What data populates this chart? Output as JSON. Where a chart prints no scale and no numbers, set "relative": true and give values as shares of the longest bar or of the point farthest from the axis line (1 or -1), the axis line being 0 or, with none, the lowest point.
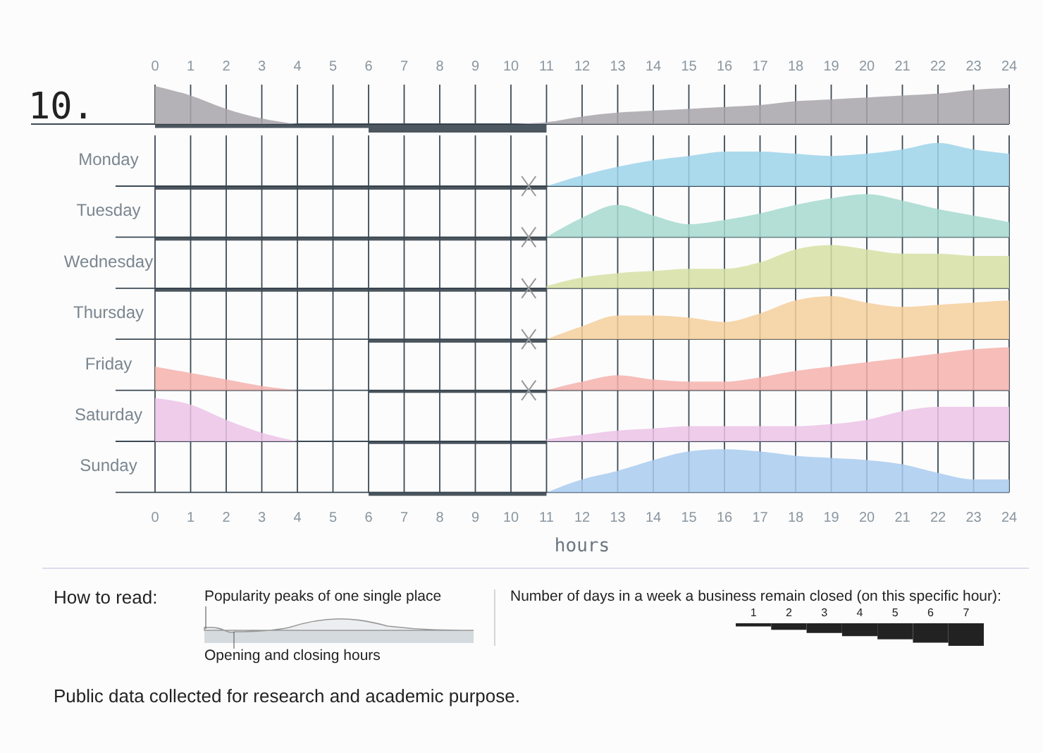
{
  "chart_data": [
    {
      "type": "area",
      "title": "10.",
      "relative": true,
      "xlim": [
        0,
        24
      ],
      "xticks": [
        0,
        1,
        2,
        3,
        4,
        5,
        6,
        7,
        8,
        9,
        10,
        11,
        12,
        13,
        14,
        15,
        16,
        17,
        18,
        19,
        20,
        21,
        22,
        23,
        24
      ],
      "tick_labels": "x",
      "grid": "x",
      "series": [
        {
          "color": "#a8a4aa",
          "x": [
            0,
            1,
            2,
            3,
            4,
            5,
            6,
            7,
            8,
            9,
            10,
            11,
            12,
            13,
            14,
            15,
            16,
            17,
            18,
            19,
            20,
            21,
            22,
            23,
            24
          ],
          "values": [
            1,
            0.75,
            0.4,
            0.15,
            0,
            null,
            null,
            null,
            null,
            null,
            0,
            0.05,
            0.2,
            0.3,
            0.35,
            0.4,
            0.45,
            0.5,
            0.6,
            0.65,
            0.7,
            0.75,
            0.8,
            0.9,
            0.95
          ]
        },
        {
          "type": "area",
          "color": "#2e3a44",
          "x": [
            0,
            6,
            6,
            11
          ],
          "values": [
            -0.1,
            -0.1,
            -0.22,
            -0.22
          ]
        }
      ]
    },
    {
      "type": "area",
      "title": "Monday",
      "relative": true,
      "xlim": [
        0,
        24
      ],
      "xticks": [
        0,
        1,
        2,
        3,
        4,
        5,
        6,
        7,
        8,
        9,
        10,
        11,
        12,
        13,
        14,
        15,
        16,
        17,
        18,
        19,
        20,
        21,
        22,
        23,
        24
      ],
      "tick_labels": false,
      "grid": "x",
      "series": [
        {
          "color": "#9ed3ea",
          "x": [
            11,
            12,
            13,
            14,
            15,
            16,
            17,
            18,
            19,
            20,
            21,
            22,
            23,
            24
          ],
          "values": [
            0,
            0.25,
            0.45,
            0.6,
            0.7,
            0.8,
            0.8,
            0.75,
            0.7,
            0.75,
            0.85,
            1,
            0.85,
            0.75
          ]
        },
        {
          "type": "area",
          "color": "#2e3a44",
          "x": [
            0,
            11
          ],
          "values": [
            -0.08,
            -0.08
          ]
        }
      ]
    },
    {
      "type": "area",
      "title": "Tuesday",
      "relative": true,
      "xlim": [
        0,
        24
      ],
      "xticks": [
        0,
        1,
        2,
        3,
        4,
        5,
        6,
        7,
        8,
        9,
        10,
        11,
        12,
        13,
        14,
        15,
        16,
        17,
        18,
        19,
        20,
        21,
        22,
        23,
        24
      ],
      "tick_labels": false,
      "grid": "x",
      "series": [
        {
          "color": "#a6d9cf",
          "x": [
            11,
            12,
            13,
            14,
            15,
            16,
            17,
            18,
            19,
            20,
            21,
            22,
            23,
            24
          ],
          "values": [
            0,
            0.45,
            0.75,
            0.5,
            0.3,
            0.4,
            0.55,
            0.75,
            0.9,
            1,
            0.85,
            0.65,
            0.5,
            0.35
          ]
        },
        {
          "type": "area",
          "color": "#2e3a44",
          "x": [
            0,
            11
          ],
          "values": [
            -0.08,
            -0.08
          ]
        }
      ]
    },
    {
      "type": "area",
      "title": "Wednesday",
      "relative": true,
      "xlim": [
        0,
        24
      ],
      "xticks": [
        0,
        1,
        2,
        3,
        4,
        5,
        6,
        7,
        8,
        9,
        10,
        11,
        12,
        13,
        14,
        15,
        16,
        17,
        18,
        19,
        20,
        21,
        22,
        23,
        24
      ],
      "tick_labels": false,
      "grid": "x",
      "series": [
        {
          "color": "#d6e0a5",
          "x": [
            11,
            12,
            13,
            14,
            15,
            16,
            17,
            18,
            19,
            20,
            21,
            22,
            23,
            24
          ],
          "values": [
            0.05,
            0.25,
            0.35,
            0.4,
            0.45,
            0.45,
            0.6,
            0.9,
            1,
            0.9,
            0.8,
            0.8,
            0.75,
            0.75
          ]
        },
        {
          "type": "area",
          "color": "#2e3a44",
          "x": [
            0,
            11
          ],
          "values": [
            -0.08,
            -0.08
          ]
        }
      ]
    },
    {
      "type": "area",
      "title": "Thursday",
      "relative": true,
      "xlim": [
        0,
        24
      ],
      "xticks": [
        0,
        1,
        2,
        3,
        4,
        5,
        6,
        7,
        8,
        9,
        10,
        11,
        12,
        13,
        14,
        15,
        16,
        17,
        18,
        19,
        20,
        21,
        22,
        23,
        24
      ],
      "tick_labels": false,
      "grid": "x",
      "series": [
        {
          "color": "#f5cf9c",
          "x": [
            11,
            12,
            13,
            14,
            15,
            16,
            17,
            18,
            19,
            20,
            21,
            22,
            23,
            24
          ],
          "values": [
            0,
            0.3,
            0.55,
            0.55,
            0.5,
            0.4,
            0.6,
            0.9,
            1,
            0.85,
            0.75,
            0.8,
            0.85,
            0.9
          ]
        },
        {
          "type": "area",
          "color": "#2e3a44",
          "x": [
            6,
            11
          ],
          "values": [
            -0.08,
            -0.08
          ]
        }
      ]
    },
    {
      "type": "area",
      "title": "Friday",
      "relative": true,
      "xlim": [
        0,
        24
      ],
      "xticks": [
        0,
        1,
        2,
        3,
        4,
        5,
        6,
        7,
        8,
        9,
        10,
        11,
        12,
        13,
        14,
        15,
        16,
        17,
        18,
        19,
        20,
        21,
        22,
        23,
        24
      ],
      "tick_labels": false,
      "grid": "x",
      "series": [
        {
          "color": "#f5b2ad",
          "x": [
            0,
            1,
            2,
            3,
            4,
            5,
            6,
            7,
            8,
            9,
            10,
            11,
            12,
            13,
            14,
            15,
            16,
            17,
            18,
            19,
            20,
            21,
            22,
            23,
            24
          ],
          "values": [
            0.55,
            0.4,
            0.25,
            0.1,
            0,
            null,
            null,
            null,
            null,
            null,
            null,
            0,
            0.2,
            0.35,
            0.25,
            0.2,
            0.2,
            0.3,
            0.45,
            0.55,
            0.65,
            0.75,
            0.85,
            0.95,
            1
          ]
        },
        {
          "type": "area",
          "color": "#2e3a44",
          "x": [
            6,
            11
          ],
          "values": [
            -0.06,
            -0.06
          ]
        }
      ]
    },
    {
      "type": "area",
      "title": "Saturday",
      "relative": true,
      "xlim": [
        0,
        24
      ],
      "xticks": [
        0,
        1,
        2,
        3,
        4,
        5,
        6,
        7,
        8,
        9,
        10,
        11,
        12,
        13,
        14,
        15,
        16,
        17,
        18,
        19,
        20,
        21,
        22,
        23,
        24
      ],
      "tick_labels": false,
      "grid": "x",
      "series": [
        {
          "color": "#ebc3e6",
          "x": [
            0,
            1,
            2,
            3,
            4,
            5,
            6,
            7,
            8,
            9,
            10,
            11,
            12,
            13,
            14,
            15,
            16,
            17,
            18,
            19,
            20,
            21,
            22,
            23,
            24
          ],
          "values": [
            1,
            0.85,
            0.5,
            0.2,
            0,
            null,
            null,
            null,
            null,
            null,
            null,
            0.05,
            0.15,
            0.25,
            0.3,
            0.35,
            0.35,
            0.35,
            0.35,
            0.4,
            0.5,
            0.7,
            0.8,
            0.8,
            0.8
          ]
        },
        {
          "type": "area",
          "color": "#2e3a44",
          "x": [
            6,
            11
          ],
          "values": [
            -0.06,
            -0.06
          ]
        }
      ]
    },
    {
      "type": "area",
      "title": "Sunday",
      "xlabel": "hours",
      "relative": true,
      "xlim": [
        0,
        24
      ],
      "xticks": [
        0,
        1,
        2,
        3,
        4,
        5,
        6,
        7,
        8,
        9,
        10,
        11,
        12,
        13,
        14,
        15,
        16,
        17,
        18,
        19,
        20,
        21,
        22,
        23,
        24
      ],
      "tick_labels": "x",
      "grid": "x",
      "series": [
        {
          "color": "#a9cbee",
          "x": [
            11,
            12,
            13,
            14,
            15,
            16,
            17,
            18,
            19,
            20,
            21,
            22,
            23,
            24
          ],
          "values": [
            0,
            0.3,
            0.5,
            0.75,
            0.95,
            1,
            0.95,
            0.85,
            0.8,
            0.75,
            0.65,
            0.45,
            0.3,
            0.3
          ]
        },
        {
          "type": "area",
          "color": "#2e3a44",
          "x": [
            6,
            11
          ],
          "values": [
            -0.08,
            -0.08
          ]
        }
      ]
    },
    {
      "type": "bar",
      "relative": true,
      "x": [
        1,
        2,
        3,
        4,
        5,
        6,
        7
      ],
      "xlim": [
        0.5,
        7.5
      ],
      "xticks": [
        1,
        2,
        3,
        4,
        5,
        6,
        7
      ],
      "color": "#222222",
      "values": [
        -0.14,
        -0.29,
        -0.43,
        -0.57,
        -0.71,
        -0.86,
        -1
      ]
    },
    {
      "type": "other",
      "annotations": [
        "How to read:",
        "Popularity peaks of one single place",
        "Opening and closing hours",
        "Number of days in a week a business remain closed (on this specific hour):",
        "Public data collected for research and academic purpose."
      ]
    }
  ]
}
